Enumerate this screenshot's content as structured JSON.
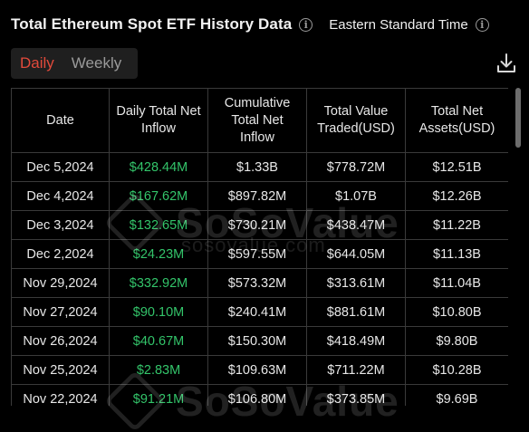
{
  "header": {
    "title": "Total Ethereum Spot ETF History Data",
    "timezone": "Eastern Standard Time"
  },
  "tabs": [
    {
      "label": "Daily",
      "active": true
    },
    {
      "label": "Weekly",
      "active": false
    }
  ],
  "icons": {
    "info": "info-icon",
    "download": "download-icon"
  },
  "colors": {
    "accent": "#e24a3b",
    "positive": "#33c46a",
    "background": "#000000",
    "border": "#3a3a3a"
  },
  "watermark": {
    "brand": "SoSoValue",
    "url": "sosovalue.com"
  },
  "table": {
    "columns": [
      "Date",
      "Daily Total Net Inflow",
      "Cumulative Total Net Inflow",
      "Total Value Traded(USD)",
      "Total Net Assets(USD)"
    ],
    "rows": [
      [
        "Dec 5,2024",
        "$428.44M",
        "$1.33B",
        "$778.72M",
        "$12.51B"
      ],
      [
        "Dec 4,2024",
        "$167.62M",
        "$897.82M",
        "$1.07B",
        "$12.26B"
      ],
      [
        "Dec 3,2024",
        "$132.65M",
        "$730.21M",
        "$438.47M",
        "$11.22B"
      ],
      [
        "Dec 2,2024",
        "$24.23M",
        "$597.55M",
        "$644.05M",
        "$11.13B"
      ],
      [
        "Nov 29,2024",
        "$332.92M",
        "$573.32M",
        "$313.61M",
        "$11.04B"
      ],
      [
        "Nov 27,2024",
        "$90.10M",
        "$240.41M",
        "$881.61M",
        "$10.80B"
      ],
      [
        "Nov 26,2024",
        "$40.67M",
        "$150.30M",
        "$418.49M",
        "$9.80B"
      ],
      [
        "Nov 25,2024",
        "$2.83M",
        "$109.63M",
        "$711.22M",
        "$10.28B"
      ],
      [
        "Nov 22,2024",
        "$91.21M",
        "$106.80M",
        "$373.85M",
        "$9.69B"
      ]
    ]
  }
}
